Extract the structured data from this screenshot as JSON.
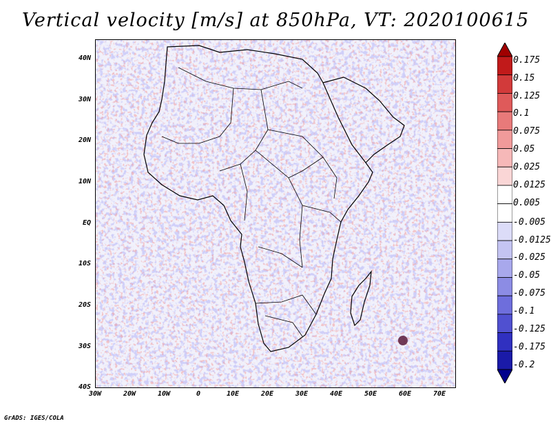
{
  "title": "Vertical velocity [m/s] at 850hPa, VT: 2020100615",
  "credit": "GrADS: IGES/COLA",
  "map": {
    "lon_range": [
      -30,
      75
    ],
    "lat_range": [
      -40,
      45
    ],
    "lat_labels": [
      "40N",
      "30N",
      "20N",
      "10N",
      "EQ",
      "10S",
      "20S",
      "30S",
      "40S"
    ],
    "lat_values": [
      40,
      30,
      20,
      10,
      0,
      -10,
      -20,
      -30,
      -40
    ],
    "lon_labels": [
      "30W",
      "20W",
      "10W",
      "0",
      "10E",
      "20E",
      "30E",
      "40E",
      "50E",
      "60E",
      "70E"
    ],
    "lon_values": [
      -30,
      -20,
      -10,
      0,
      10,
      20,
      30,
      40,
      50,
      60,
      70
    ]
  },
  "legend": {
    "labels": [
      "0.175",
      "0.15",
      "0.125",
      "0.1",
      "0.075",
      "0.05",
      "0.025",
      "0.0125",
      "0.005",
      "-0.005",
      "-0.0125",
      "-0.025",
      "-0.05",
      "-0.075",
      "-0.1",
      "-0.125",
      "-0.175",
      "-0.2"
    ],
    "colors": [
      "#a00000",
      "#c11a1a",
      "#d23a3a",
      "#df5a5a",
      "#e87a7a",
      "#f09a9a",
      "#f6b8b8",
      "#fad6d6",
      "#ffffff",
      "#ffffff",
      "#dcdcf8",
      "#c4c4f2",
      "#a8a8ec",
      "#8c8ce4",
      "#6e6edc",
      "#5050d0",
      "#3030c0",
      "#1a1aa8",
      "#00008c"
    ]
  }
}
